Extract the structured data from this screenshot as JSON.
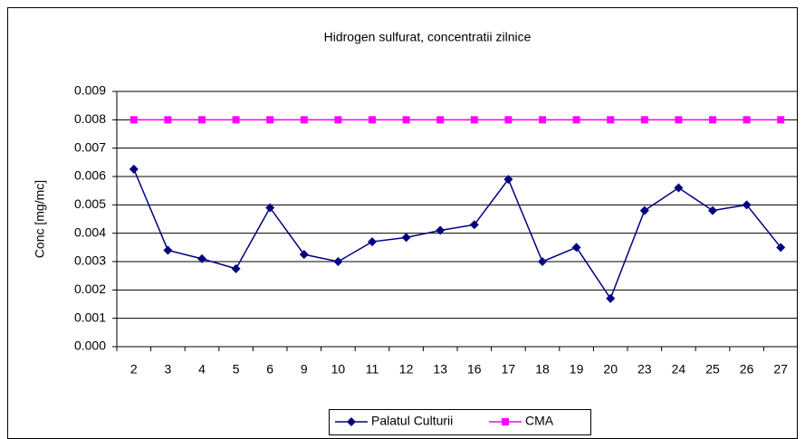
{
  "chart_data": {
    "type": "line",
    "title": "Hidrogen sulfurat, concentratii zilnice",
    "y_label": "Conc [mg/mc]",
    "categories": [
      "2",
      "3",
      "4",
      "5",
      "6",
      "9",
      "10",
      "11",
      "12",
      "13",
      "16",
      "17",
      "18",
      "19",
      "20",
      "23",
      "24",
      "25",
      "26",
      "27"
    ],
    "series": [
      {
        "name": "Palatul Culturii",
        "color": "#000080",
        "marker": "diamond",
        "values": [
          0.00626,
          0.0034,
          0.0031,
          0.00275,
          0.0049,
          0.00325,
          0.003,
          0.0037,
          0.00385,
          0.0041,
          0.0043,
          0.0059,
          0.003,
          0.0035,
          0.0017,
          0.0048,
          0.0056,
          0.0048,
          0.005,
          0.0035
        ]
      },
      {
        "name": "CMA",
        "color": "#ff00ff",
        "marker": "square",
        "values": [
          0.008,
          0.008,
          0.008,
          0.008,
          0.008,
          0.008,
          0.008,
          0.008,
          0.008,
          0.008,
          0.008,
          0.008,
          0.008,
          0.008,
          0.008,
          0.008,
          0.008,
          0.008,
          0.008,
          0.008
        ]
      }
    ],
    "ylim": [
      0,
      0.009
    ],
    "yticks": [
      {
        "value": 0,
        "label": "0.000"
      },
      0.001,
      0.002,
      0.003,
      0.004,
      0.005,
      0.006,
      0.007,
      0.008,
      0.009
    ],
    "grid": true,
    "legend": "bottom"
  }
}
